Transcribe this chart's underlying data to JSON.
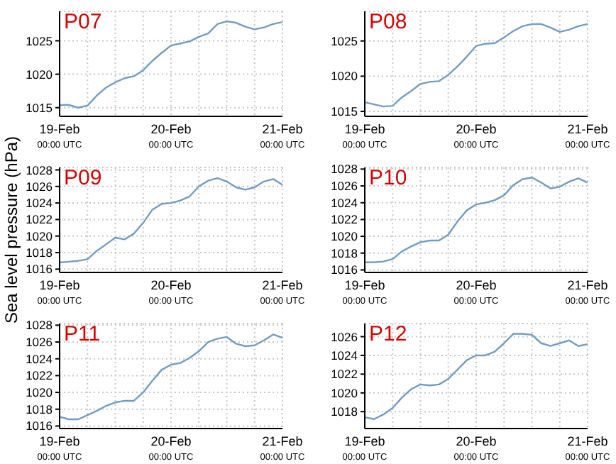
{
  "chart_data": [
    {
      "type": "line",
      "title": "P07",
      "categories": [
        "19-Feb\n00:00 UTC",
        null,
        null,
        null,
        null,
        null,
        null,
        null,
        null,
        null,
        null,
        null,
        "20-Feb\n00:00 UTC",
        null,
        null,
        null,
        null,
        null,
        null,
        null,
        null,
        null,
        null,
        null,
        "21-Feb\n00:00 UTC"
      ],
      "ylim": [
        1013.7,
        1029.4
      ],
      "yticks": [
        1015,
        1020,
        1025
      ],
      "grid": true,
      "series": [
        {
          "color": "#6f9dc8",
          "values": [
            1015.4,
            1015.4,
            1015.0,
            1015.3,
            1016.8,
            1018.0,
            1018.8,
            1019.4,
            1019.7,
            1020.6,
            1022.0,
            1023.2,
            1024.3,
            1024.6,
            1024.9,
            1025.6,
            1026.1,
            1027.5,
            1027.9,
            1027.7,
            1027.1,
            1026.7,
            1027.0,
            1027.5,
            1027.8
          ]
        }
      ]
    },
    {
      "type": "line",
      "title": "P08",
      "categories": [
        "19-Feb\n00:00 UTC",
        null,
        null,
        null,
        null,
        null,
        null,
        null,
        null,
        null,
        null,
        null,
        "20-Feb\n00:00 UTC",
        null,
        null,
        null,
        null,
        null,
        null,
        null,
        null,
        null,
        null,
        null,
        "21-Feb\n00:00 UTC"
      ],
      "ylim": [
        1014.3,
        1029.2
      ],
      "yticks": [
        1015,
        1020,
        1025
      ],
      "grid": true,
      "series": [
        {
          "color": "#6f9dc8",
          "values": [
            1016.3,
            1016.0,
            1015.7,
            1015.8,
            1017.0,
            1017.9,
            1018.9,
            1019.2,
            1019.3,
            1020.2,
            1021.4,
            1022.8,
            1024.3,
            1024.6,
            1024.7,
            1025.5,
            1026.4,
            1027.1,
            1027.4,
            1027.4,
            1026.9,
            1026.3,
            1026.6,
            1027.1,
            1027.4
          ]
        }
      ]
    },
    {
      "type": "line",
      "title": "P09",
      "ylabel": "Sea level pressure (hPa)",
      "categories": [
        "19-Feb\n00:00 UTC",
        null,
        null,
        null,
        null,
        null,
        null,
        null,
        null,
        null,
        null,
        null,
        "20-Feb\n00:00 UTC",
        null,
        null,
        null,
        null,
        null,
        null,
        null,
        null,
        null,
        null,
        null,
        "21-Feb\n00:00 UTC"
      ],
      "ylim": [
        1015.6,
        1028.3
      ],
      "yticks": [
        1016,
        1018,
        1020,
        1022,
        1024,
        1026,
        1028
      ],
      "grid": true,
      "series": [
        {
          "color": "#6f9dc8",
          "values": [
            1016.8,
            1016.9,
            1017.0,
            1017.2,
            1018.2,
            1019.0,
            1019.8,
            1019.6,
            1020.3,
            1021.6,
            1023.2,
            1023.9,
            1024.0,
            1024.3,
            1024.8,
            1026.0,
            1026.7,
            1027.0,
            1026.6,
            1025.9,
            1025.6,
            1025.9,
            1026.6,
            1026.9,
            1026.2
          ]
        }
      ]
    },
    {
      "type": "line",
      "title": "P10",
      "categories": [
        "19-Feb\n00:00 UTC",
        null,
        null,
        null,
        null,
        null,
        null,
        null,
        null,
        null,
        null,
        null,
        "20-Feb\n00:00 UTC",
        null,
        null,
        null,
        null,
        null,
        null,
        null,
        null,
        null,
        null,
        null,
        "21-Feb\n00:00 UTC"
      ],
      "ylim": [
        1015.7,
        1028.2
      ],
      "yticks": [
        1016,
        1018,
        1020,
        1022,
        1024,
        1026,
        1028
      ],
      "grid": true,
      "series": [
        {
          "color": "#6f9dc8",
          "values": [
            1016.9,
            1016.9,
            1017.0,
            1017.3,
            1018.2,
            1018.8,
            1019.3,
            1019.5,
            1019.5,
            1020.2,
            1021.8,
            1023.1,
            1023.8,
            1024.0,
            1024.3,
            1024.9,
            1026.1,
            1026.8,
            1027.0,
            1026.4,
            1025.7,
            1025.9,
            1026.5,
            1026.9,
            1026.4
          ]
        }
      ]
    },
    {
      "type": "line",
      "title": "P11",
      "categories": [
        "19-Feb\n00:00 UTC",
        null,
        null,
        null,
        null,
        null,
        null,
        null,
        null,
        null,
        null,
        null,
        "20-Feb\n00:00 UTC",
        null,
        null,
        null,
        null,
        null,
        null,
        null,
        null,
        null,
        null,
        null,
        "21-Feb\n00:00 UTC"
      ],
      "ylim": [
        1015.7,
        1028.2
      ],
      "yticks": [
        1016,
        1018,
        1020,
        1022,
        1024,
        1026,
        1028
      ],
      "grid": true,
      "series": [
        {
          "color": "#6f9dc8",
          "values": [
            1017.1,
            1016.8,
            1016.8,
            1017.3,
            1017.8,
            1018.4,
            1018.8,
            1019.0,
            1019.0,
            1020.0,
            1021.4,
            1022.7,
            1023.3,
            1023.5,
            1024.1,
            1024.9,
            1026.0,
            1026.4,
            1026.6,
            1025.8,
            1025.5,
            1025.6,
            1026.2,
            1026.9,
            1026.5
          ]
        }
      ]
    },
    {
      "type": "line",
      "title": "P12",
      "categories": [
        "19-Feb\n00:00 UTC",
        null,
        null,
        null,
        null,
        null,
        null,
        null,
        null,
        null,
        null,
        null,
        "20-Feb\n00:00 UTC",
        null,
        null,
        null,
        null,
        null,
        null,
        null,
        null,
        null,
        null,
        null,
        "21-Feb\n00:00 UTC"
      ],
      "ylim": [
        1016.2,
        1027.4
      ],
      "yticks": [
        1018,
        1020,
        1022,
        1024,
        1026
      ],
      "grid": true,
      "series": [
        {
          "color": "#6f9dc8",
          "values": [
            1017.4,
            1017.2,
            1017.7,
            1018.4,
            1019.5,
            1020.4,
            1020.9,
            1020.8,
            1020.9,
            1021.5,
            1022.5,
            1023.5,
            1024.0,
            1024.0,
            1024.4,
            1025.3,
            1026.3,
            1026.3,
            1026.2,
            1025.3,
            1025.0,
            1025.3,
            1025.6,
            1025.0,
            1025.2
          ]
        }
      ]
    }
  ]
}
